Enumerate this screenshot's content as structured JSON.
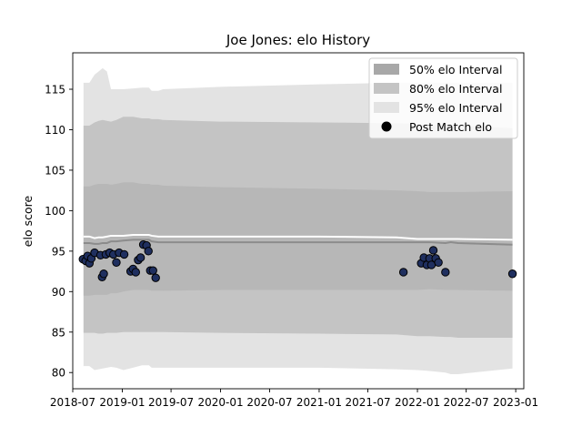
{
  "chart_data": {
    "type": "area",
    "title": "Joe Jones: elo History",
    "xlabel": "",
    "ylabel": "elo score",
    "x_range": [
      "2018-07-01",
      "2023-01-31"
    ],
    "ylim": [
      78,
      119.5
    ],
    "x_ticks": [
      "2018-07",
      "2019-01",
      "2019-07",
      "2020-01",
      "2020-07",
      "2021-01",
      "2021-07",
      "2022-01",
      "2022-07",
      "2023-01"
    ],
    "x_tick_labels": [
      "2018-07",
      "2019-01",
      "2019-07",
      "2020-01",
      "2020-07",
      "2021-01",
      "2021-07",
      "2022-01",
      "2022-07",
      "2023-01"
    ],
    "y_ticks": [
      80,
      85,
      90,
      95,
      100,
      105,
      110,
      115
    ],
    "grid": false,
    "legend": {
      "placement": "top-right",
      "entries": [
        "50% elo Interval",
        "80% elo Interval",
        "95% elo Interval",
        "Post Match elo"
      ]
    },
    "colors": {
      "band50": "#a8a8a8",
      "band80": "#c4c4c4",
      "band95": "#e3e3e3",
      "mean_line": "#8c8c8c",
      "upper_line": "#ffffff",
      "point_fill": "#1f2f5f",
      "point_edge": "#000000"
    },
    "bands": {
      "dates": [
        "2018-08-10",
        "2018-09-01",
        "2018-09-20",
        "2018-10-05",
        "2018-10-20",
        "2018-11-05",
        "2018-11-20",
        "2018-12-10",
        "2019-01-05",
        "2019-02-10",
        "2019-03-15",
        "2019-04-10",
        "2019-04-20",
        "2019-05-15",
        "2019-06-01",
        "2020-01-01",
        "2021-01-01",
        "2021-10-15",
        "2022-01-01",
        "2022-02-15",
        "2022-04-15",
        "2022-05-05",
        "2022-06-01",
        "2022-12-20"
      ],
      "p95_upper": [
        115.8,
        115.8,
        116.8,
        117.2,
        117.6,
        117.2,
        115.0,
        115.0,
        115.0,
        115.1,
        115.2,
        115.2,
        114.8,
        114.8,
        115.0,
        115.3,
        115.6,
        115.8,
        115.8,
        115.8,
        115.8,
        115.8,
        115.8,
        115.8
      ],
      "p80_upper": [
        110.5,
        110.5,
        110.9,
        111.1,
        111.2,
        111.1,
        111.0,
        111.2,
        111.6,
        111.6,
        111.4,
        111.4,
        111.3,
        111.3,
        111.2,
        111.0,
        110.9,
        110.8,
        110.7,
        110.6,
        110.5,
        110.5,
        110.5,
        110.2
      ],
      "p50_upper": [
        103.0,
        103.0,
        103.2,
        103.3,
        103.3,
        103.3,
        103.2,
        103.3,
        103.5,
        103.5,
        103.3,
        103.3,
        103.2,
        103.2,
        103.1,
        102.9,
        102.7,
        102.5,
        102.4,
        102.3,
        102.3,
        102.3,
        102.3,
        102.4
      ],
      "mean": [
        96.0,
        96.0,
        95.9,
        95.9,
        96.0,
        96.0,
        96.2,
        96.2,
        96.3,
        96.4,
        96.4,
        96.4,
        96.2,
        96.1,
        96.1,
        96.1,
        96.1,
        96.1,
        96.1,
        96.1,
        96.0,
        96.1,
        96.0,
        95.8
      ],
      "upper_line": [
        96.8,
        96.8,
        96.6,
        96.7,
        96.7,
        96.8,
        96.9,
        96.9,
        96.9,
        97.0,
        97.0,
        97.0,
        96.9,
        96.8,
        96.8,
        96.8,
        96.8,
        96.7,
        96.5,
        96.5,
        96.5,
        96.5,
        96.5,
        96.4
      ],
      "p50_lower": [
        89.5,
        89.5,
        89.6,
        89.6,
        89.6,
        89.6,
        89.8,
        89.8,
        90.0,
        90.2,
        90.2,
        90.2,
        90.1,
        90.1,
        90.1,
        90.2,
        90.2,
        90.2,
        90.2,
        90.3,
        90.2,
        90.2,
        90.2,
        90.1
      ],
      "p80_lower": [
        84.9,
        84.9,
        84.9,
        84.8,
        84.8,
        84.9,
        84.9,
        84.9,
        85.0,
        85.0,
        85.0,
        85.0,
        85.0,
        85.0,
        85.0,
        84.9,
        84.8,
        84.7,
        84.5,
        84.5,
        84.4,
        84.4,
        84.3,
        84.3
      ],
      "p95_lower": [
        80.8,
        80.8,
        80.3,
        80.4,
        80.5,
        80.6,
        80.7,
        80.6,
        80.3,
        80.6,
        80.9,
        80.9,
        80.6,
        80.6,
        80.6,
        80.6,
        80.6,
        80.4,
        80.3,
        80.2,
        80.0,
        79.8,
        79.8,
        80.5
      ]
    },
    "points": {
      "name": "Post Match elo",
      "dates": [
        "2018-08-08",
        "2018-08-18",
        "2018-08-25",
        "2018-09-01",
        "2018-09-08",
        "2018-09-20",
        "2018-10-12",
        "2018-10-18",
        "2018-10-24",
        "2018-11-01",
        "2018-11-15",
        "2018-11-29",
        "2018-12-10",
        "2018-12-20",
        "2019-01-08",
        "2019-02-01",
        "2019-02-10",
        "2019-02-20",
        "2019-03-01",
        "2019-03-10",
        "2019-03-20",
        "2019-04-01",
        "2019-04-08",
        "2019-04-15",
        "2019-04-25",
        "2019-05-05",
        "2021-11-10",
        "2022-01-15",
        "2022-01-25",
        "2022-02-05",
        "2022-02-15",
        "2022-02-22",
        "2022-03-01",
        "2022-03-10",
        "2022-03-20",
        "2022-04-15",
        "2022-12-20"
      ],
      "values": [
        94.0,
        93.8,
        94.4,
        93.5,
        94.1,
        94.8,
        94.5,
        91.8,
        92.2,
        94.6,
        94.8,
        94.6,
        93.6,
        94.8,
        94.6,
        92.5,
        92.8,
        92.4,
        93.9,
        94.2,
        95.8,
        95.7,
        95.0,
        92.6,
        92.6,
        91.7,
        92.4,
        93.5,
        94.2,
        93.3,
        94.1,
        93.3,
        95.1,
        94.1,
        93.6,
        92.4,
        92.2
      ]
    }
  }
}
